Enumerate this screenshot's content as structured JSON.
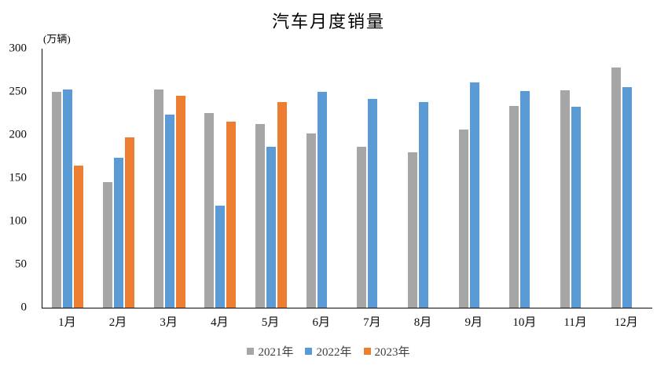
{
  "chart_data": {
    "type": "bar",
    "title": "汽车月度销量",
    "unit_label": "(万辆)",
    "categories": [
      "1月",
      "2月",
      "3月",
      "4月",
      "5月",
      "6月",
      "7月",
      "8月",
      "9月",
      "10月",
      "11月",
      "12月"
    ],
    "series": [
      {
        "name": "2021年",
        "color": "#A6A6A6",
        "values": [
          250.3,
          145.5,
          252.6,
          225.2,
          212.8,
          201.5,
          186.4,
          179.9,
          206.7,
          233.3,
          252.2,
          278.6
        ]
      },
      {
        "name": "2022年",
        "color": "#5B9BD5",
        "values": [
          253.1,
          173.7,
          223.4,
          118.1,
          186.2,
          250.2,
          242.0,
          238.3,
          261.0,
          250.5,
          232.8,
          255.6
        ]
      },
      {
        "name": "2023年",
        "color": "#ED7D31",
        "values": [
          164.9,
          197.6,
          245.1,
          215.9,
          238.2,
          null,
          null,
          null,
          null,
          null,
          null,
          null
        ]
      }
    ],
    "ylim": [
      0,
      300
    ],
    "y_ticks": [
      0,
      50,
      100,
      150,
      200,
      250,
      300
    ],
    "grid": false,
    "legend_position": "bottom",
    "colors": {
      "background": "#FFFFFF",
      "axis_line": "#0A0A0A",
      "tick_text": "#0A0A0A",
      "legend_text": "#404040",
      "title_text": "#000000"
    }
  }
}
